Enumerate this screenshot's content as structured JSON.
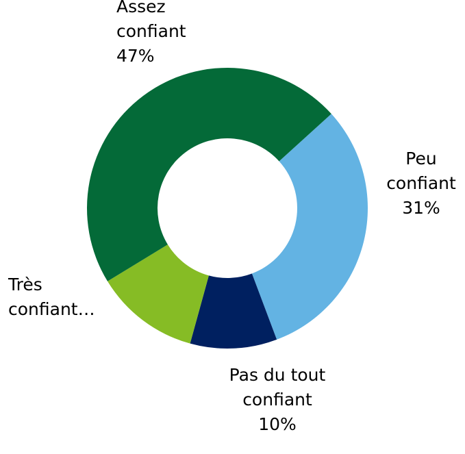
{
  "chart_data": {
    "type": "donut",
    "categories": [
      "Peu confiant",
      "Pas du tout confiant",
      "Très confiant…",
      "Assez confiant"
    ],
    "values": [
      31,
      10,
      12,
      47
    ],
    "value_labels": [
      "31%",
      "10%",
      null,
      "47%"
    ],
    "colors": [
      "#63b3e3",
      "#002060",
      "#86bc25",
      "#046a38"
    ]
  }
}
